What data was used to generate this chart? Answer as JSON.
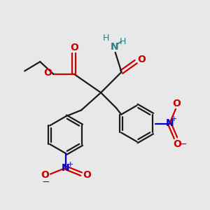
{
  "bg_color": "#e8e8e8",
  "bond_color": "#1a1a1a",
  "oxygen_color": "#cc0000",
  "nitrogen_color": "#0000cc",
  "nh_color": "#2a8080",
  "figsize": [
    3.0,
    3.0
  ],
  "dpi": 100,
  "xlim": [
    0,
    10
  ],
  "ylim": [
    0,
    10
  ]
}
